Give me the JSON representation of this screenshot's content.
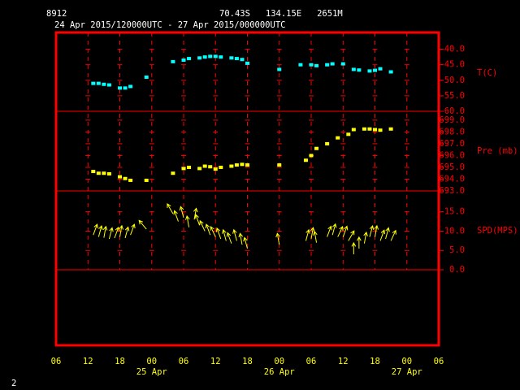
{
  "header": {
    "station": "8912",
    "location": "70.43S   134.15E   2651M",
    "period": "24 Apr 2015/120000UTC - 27 Apr 2015/000000UTC",
    "page": "2"
  },
  "chart_data": [
    {
      "type": "scatter",
      "axis_label": "T(C)",
      "color": "#00ffff",
      "x": [
        "2015-04-24T13:00",
        "2015-04-24T14:00",
        "2015-04-24T15:00",
        "2015-04-24T16:00",
        "2015-04-24T18:00",
        "2015-04-24T19:00",
        "2015-04-24T20:00",
        "2015-04-24T23:00",
        "2015-04-25T04:00",
        "2015-04-25T06:00",
        "2015-04-25T07:00",
        "2015-04-25T09:00",
        "2015-04-25T10:00",
        "2015-04-25T11:00",
        "2015-04-25T12:00",
        "2015-04-25T13:00",
        "2015-04-25T15:00",
        "2015-04-25T16:00",
        "2015-04-25T17:00",
        "2015-04-25T18:00",
        "2015-04-26T00:00",
        "2015-04-26T04:00",
        "2015-04-26T06:00",
        "2015-04-26T07:00",
        "2015-04-26T09:00",
        "2015-04-26T10:00",
        "2015-04-26T12:00",
        "2015-04-26T14:00",
        "2015-04-26T15:00",
        "2015-04-26T17:00",
        "2015-04-26T18:00",
        "2015-04-26T19:00",
        "2015-04-26T21:00"
      ],
      "values": [
        -51,
        -51,
        -51.3,
        -51.5,
        -52.5,
        -52.5,
        -52,
        -49,
        -44,
        -43.5,
        -43,
        -42.8,
        -42.5,
        -42.3,
        -42.3,
        -42.5,
        -42.8,
        -43,
        -43.3,
        -44.5,
        -46.5,
        -45,
        -45,
        -45.3,
        -45,
        -44.7,
        -44.7,
        -46.5,
        -46.7,
        -47,
        -46.8,
        -46.3,
        -47.3
      ],
      "ylim": [
        -60,
        -34.6
      ],
      "yticks": [
        {
          "value": -40,
          "label": "-40.0"
        },
        {
          "value": -45,
          "label": "-45.0"
        },
        {
          "value": -50,
          "label": "-50.0"
        },
        {
          "value": -55,
          "label": "-55.0"
        },
        {
          "value": -60,
          "label": "-60.0"
        }
      ]
    },
    {
      "type": "scatter",
      "axis_label": "Pre (mb)",
      "color": "#ffff00",
      "x": [
        "2015-04-24T13:00",
        "2015-04-24T14:00",
        "2015-04-24T15:00",
        "2015-04-24T16:00",
        "2015-04-24T18:00",
        "2015-04-24T19:00",
        "2015-04-24T20:00",
        "2015-04-24T23:00",
        "2015-04-25T04:00",
        "2015-04-25T06:00",
        "2015-04-25T07:00",
        "2015-04-25T09:00",
        "2015-04-25T10:00",
        "2015-04-25T11:00",
        "2015-04-25T12:00",
        "2015-04-25T13:00",
        "2015-04-25T15:00",
        "2015-04-25T16:00",
        "2015-04-25T17:00",
        "2015-04-25T18:00",
        "2015-04-26T00:00",
        "2015-04-26T05:00",
        "2015-04-26T06:00",
        "2015-04-26T07:00",
        "2015-04-26T09:00",
        "2015-04-26T11:00",
        "2015-04-26T13:00",
        "2015-04-26T14:00",
        "2015-04-26T16:00",
        "2015-04-26T17:00",
        "2015-04-26T18:00",
        "2015-04-26T19:00",
        "2015-04-26T21:00"
      ],
      "values": [
        694.65,
        694.5,
        694.5,
        694.45,
        694.2,
        694.05,
        693.9,
        693.9,
        694.5,
        694.9,
        695.0,
        694.9,
        695.1,
        695.05,
        694.85,
        695.0,
        695.1,
        695.2,
        695.25,
        695.2,
        695.2,
        695.6,
        696.0,
        696.6,
        697.0,
        697.5,
        697.8,
        698.2,
        698.25,
        698.25,
        698.2,
        698.15,
        698.25
      ],
      "ylim": [
        693,
        699.75
      ],
      "yticks": [
        {
          "value": 699,
          "label": "699.0"
        },
        {
          "value": 698,
          "label": "698.0"
        },
        {
          "value": 697,
          "label": "697.0"
        },
        {
          "value": 696,
          "label": "696.0"
        },
        {
          "value": 695,
          "label": "695.0"
        },
        {
          "value": 694,
          "label": "694.0"
        },
        {
          "value": 693,
          "label": "693.0"
        }
      ]
    },
    {
      "type": "quiver",
      "axis_label": "SPD(MPS)",
      "color": "#ffff00",
      "x": [
        "2015-04-24T13:00",
        "2015-04-24T14:00",
        "2015-04-24T15:00",
        "2015-04-24T16:00",
        "2015-04-24T17:00",
        "2015-04-24T18:00",
        "2015-04-24T19:00",
        "2015-04-24T20:00",
        "2015-04-24T23:00",
        "2015-04-25T04:00",
        "2015-04-25T05:00",
        "2015-04-25T06:00",
        "2015-04-25T07:00",
        "2015-04-25T08:00",
        "2015-04-25T09:00",
        "2015-04-25T10:00",
        "2015-04-25T11:00",
        "2015-04-25T12:00",
        "2015-04-25T13:00",
        "2015-04-25T14:00",
        "2015-04-25T15:00",
        "2015-04-25T16:00",
        "2015-04-25T17:00",
        "2015-04-25T18:00",
        "2015-04-26T00:00",
        "2015-04-26T05:00",
        "2015-04-26T06:00",
        "2015-04-26T07:00",
        "2015-04-26T09:00",
        "2015-04-26T10:00",
        "2015-04-26T11:00",
        "2015-04-26T12:00",
        "2015-04-26T13:00",
        "2015-04-26T14:00",
        "2015-04-26T15:00",
        "2015-04-26T16:00",
        "2015-04-26T17:00",
        "2015-04-26T18:00",
        "2015-04-26T19:00",
        "2015-04-26T20:00",
        "2015-04-26T21:00"
      ],
      "values": [
        9,
        8.5,
        8.3,
        8,
        8.2,
        8.5,
        8.2,
        9,
        10.5,
        14.5,
        12.5,
        13.5,
        11,
        13,
        11.5,
        10,
        9,
        8.5,
        8,
        7.5,
        6.8,
        7.5,
        6.5,
        5.5,
        6.5,
        7.5,
        8,
        7,
        8.5,
        9,
        8.5,
        8.5,
        7.5,
        4,
        5.5,
        6.8,
        8.5,
        8.5,
        7.5,
        8,
        7.5
      ],
      "direction": [
        20,
        15,
        10,
        15,
        20,
        10,
        15,
        20,
        -40,
        -30,
        -20,
        -15,
        -10,
        10,
        -20,
        -25,
        -20,
        -25,
        -20,
        -15,
        -20,
        -15,
        -10,
        -15,
        -10,
        15,
        10,
        -10,
        20,
        15,
        25,
        20,
        30,
        0,
        0,
        10,
        15,
        10,
        20,
        15,
        25
      ],
      "ylim": [
        0,
        20.4
      ],
      "yticks": [
        {
          "value": 15,
          "label": "15.0"
        },
        {
          "value": 10,
          "label": "10.0"
        },
        {
          "value": 5,
          "label": "5.0"
        },
        {
          "value": 0,
          "label": "0.0"
        }
      ],
      "xlim": [
        "2015-04-24T06:00",
        "2015-04-27T06:00"
      ],
      "xticks": [
        {
          "value": "2015-04-24T06:00",
          "label": "06"
        },
        {
          "value": "2015-04-24T12:00",
          "label": "12"
        },
        {
          "value": "2015-04-24T18:00",
          "label": "18"
        },
        {
          "value": "2015-04-25T00:00",
          "label": "00"
        },
        {
          "value": "2015-04-25T06:00",
          "label": "06"
        },
        {
          "value": "2015-04-25T12:00",
          "label": "12"
        },
        {
          "value": "2015-04-25T18:00",
          "label": "18"
        },
        {
          "value": "2015-04-26T00:00",
          "label": "00"
        },
        {
          "value": "2015-04-26T06:00",
          "label": "06"
        },
        {
          "value": "2015-04-26T12:00",
          "label": "12"
        },
        {
          "value": "2015-04-26T18:00",
          "label": "18"
        },
        {
          "value": "2015-04-27T00:00",
          "label": "00"
        },
        {
          "value": "2015-04-27T06:00",
          "label": "06"
        }
      ],
      "day_labels": [
        {
          "value": "2015-04-25T00:00",
          "label": "25 Apr"
        },
        {
          "value": "2015-04-26T00:00",
          "label": "26 Apr"
        },
        {
          "value": "2015-04-27T00:00",
          "label": "27 Apr"
        }
      ]
    }
  ]
}
